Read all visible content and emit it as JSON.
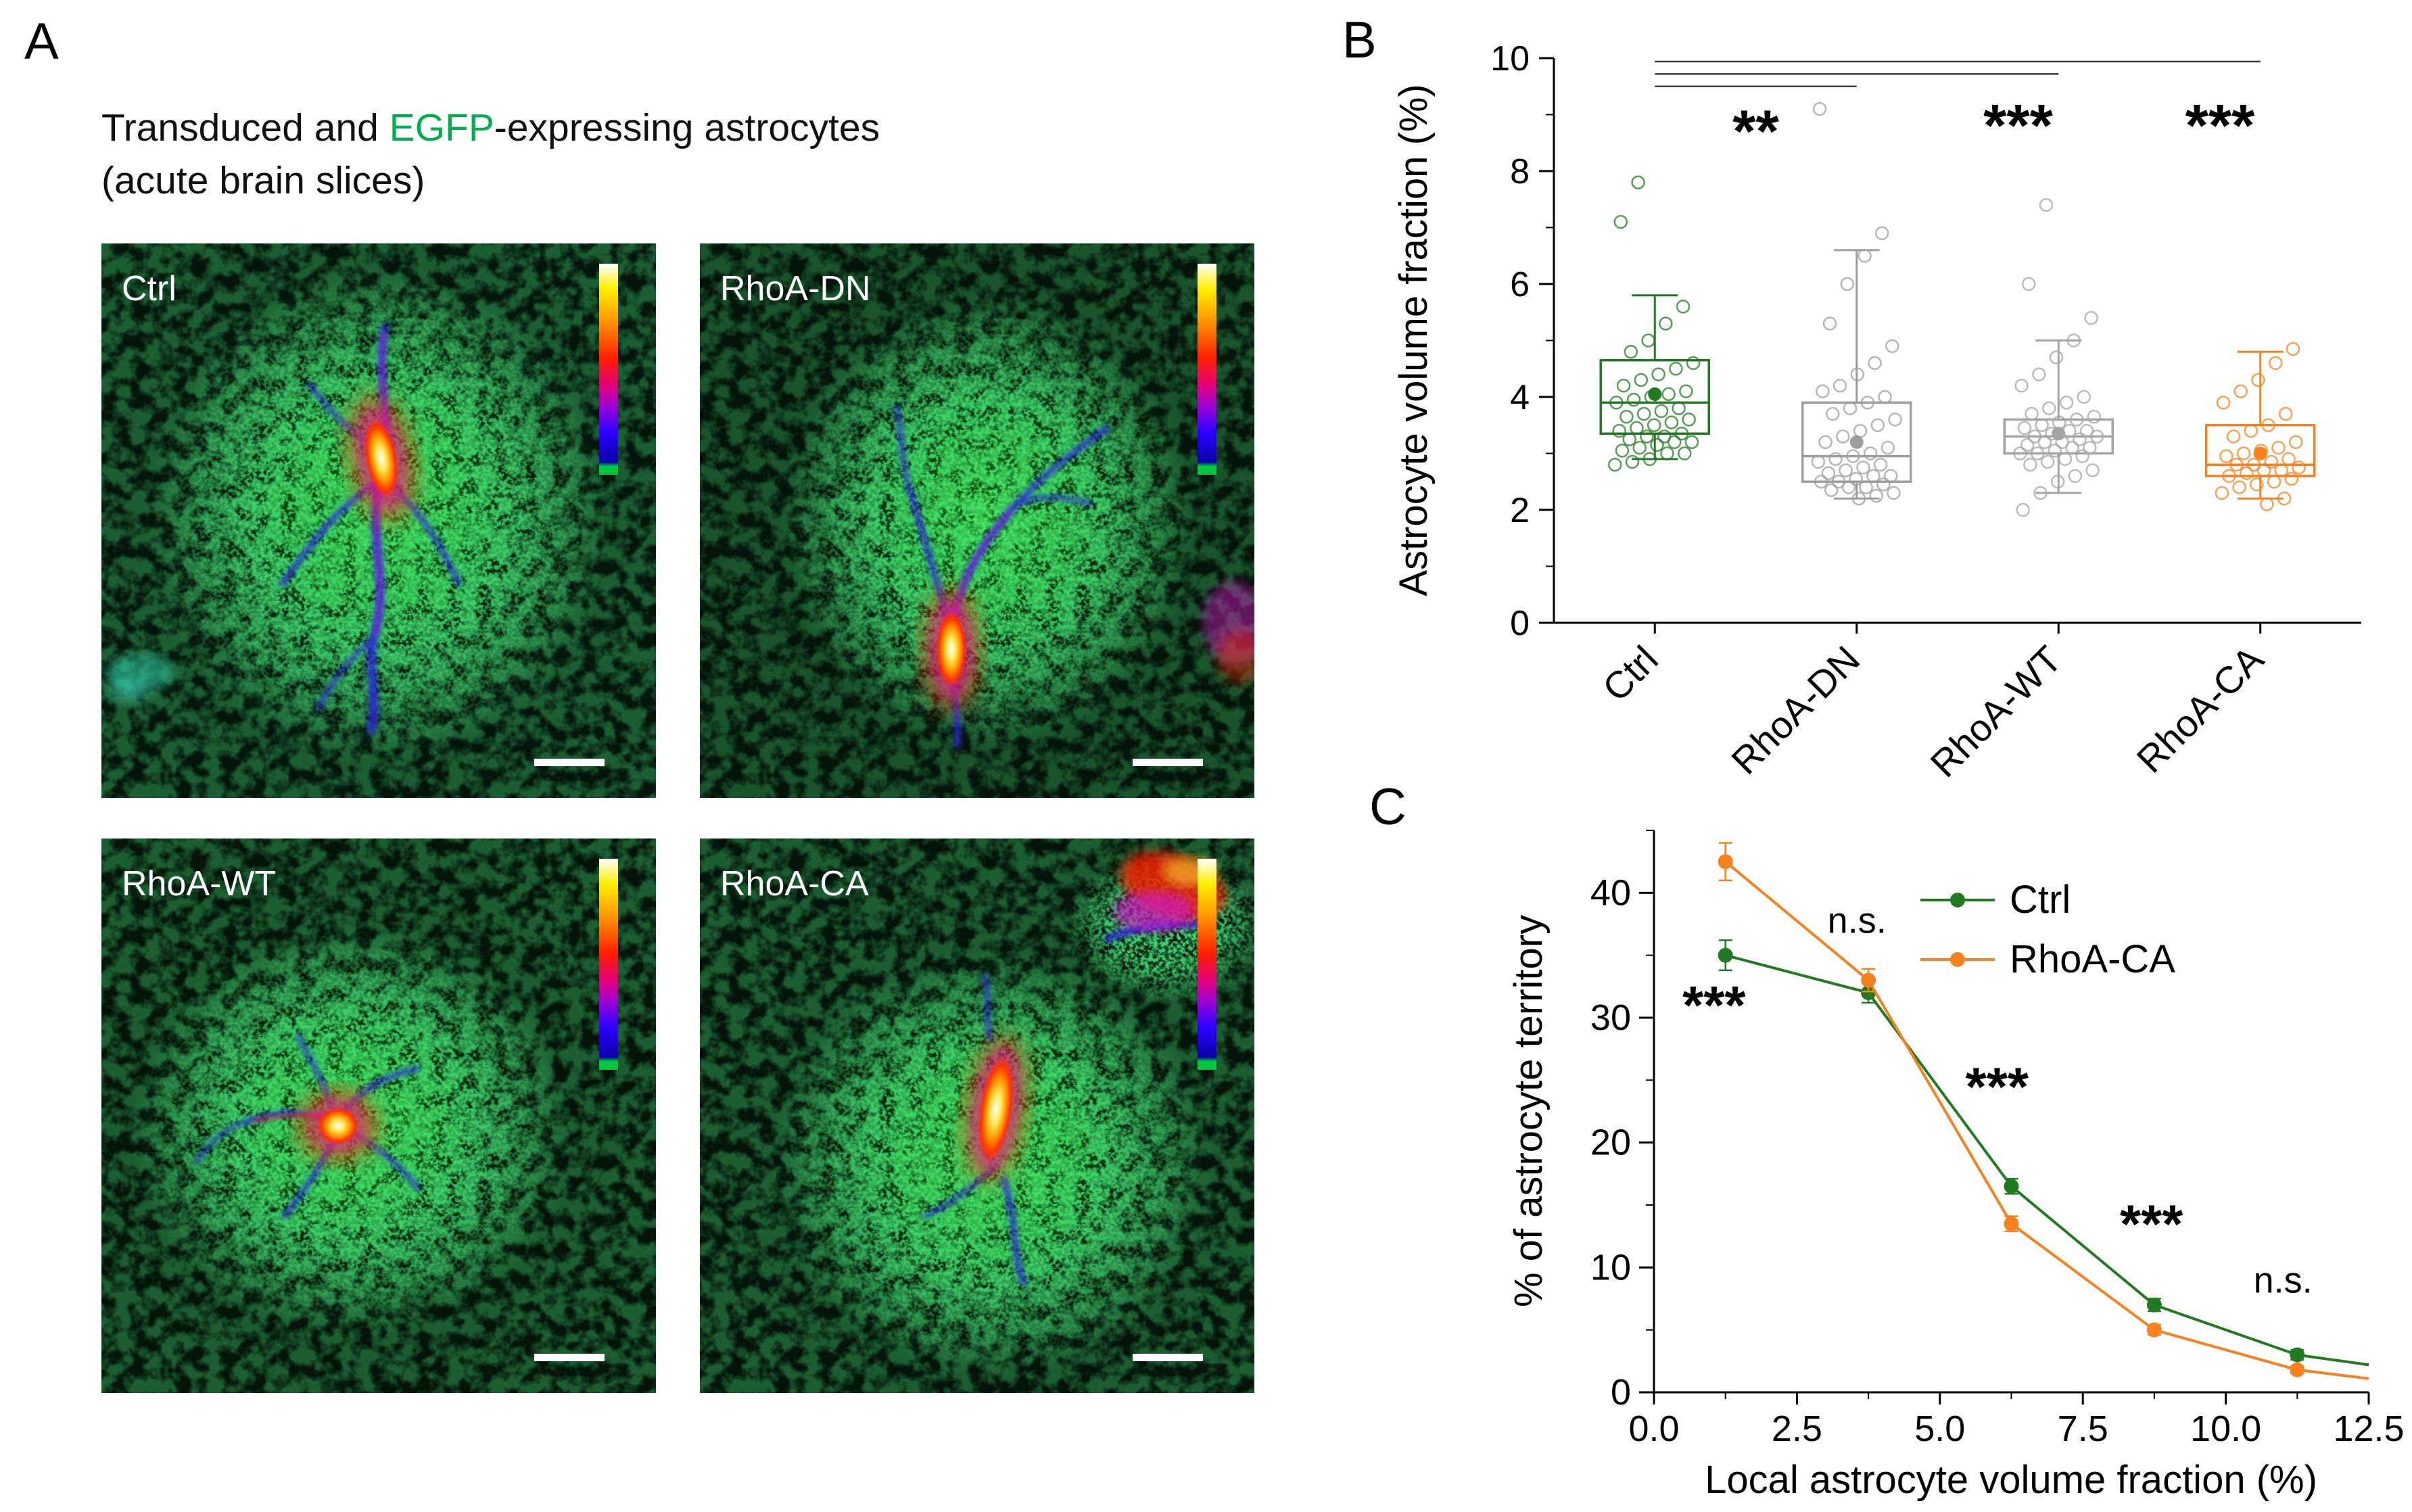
{
  "figure": {
    "panelA": {
      "label": "A",
      "title_pre": "Transduced and ",
      "title_egfp": "EGFP",
      "title_post": "-expressing astrocytes",
      "title_line2": "(acute brain slices)",
      "images": [
        {
          "label": "Ctrl"
        },
        {
          "label": "RhoA-DN"
        },
        {
          "label": "RhoA-WT"
        },
        {
          "label": "RhoA-CA"
        }
      ]
    },
    "panelB": {
      "label": "B"
    },
    "panelC": {
      "label": "C"
    }
  },
  "colors": {
    "ctrl_green": "#217a21",
    "gray": "#9e9e9e",
    "orange": "#f5821f",
    "egfp_green": "#00b050"
  },
  "chart_data": [
    {
      "type": "box",
      "ylabel": "Astrocyte volume fraction (%)",
      "ylim": [
        0,
        10
      ],
      "yticks": [
        0,
        2,
        4,
        6,
        8,
        10
      ],
      "categories": [
        "Ctrl",
        "RhoA-DN",
        "RhoA-WT",
        "RhoA-CA"
      ],
      "colors": [
        "#217a21",
        "#9e9e9e",
        "#a4a4a4",
        "#f5821f"
      ],
      "boxes": [
        {
          "q1": 3.35,
          "median": 3.9,
          "q3": 4.65,
          "whisker_low": 2.9,
          "whisker_high": 5.8,
          "mean": 4.05
        },
        {
          "q1": 2.5,
          "median": 2.95,
          "q3": 3.9,
          "whisker_low": 2.2,
          "whisker_high": 6.6,
          "mean": 3.2
        },
        {
          "q1": 3.0,
          "median": 3.3,
          "q3": 3.6,
          "whisker_low": 2.3,
          "whisker_high": 5.0,
          "mean": 3.35
        },
        {
          "q1": 2.6,
          "median": 2.8,
          "q3": 3.5,
          "whisker_low": 2.2,
          "whisker_high": 4.8,
          "mean": 3.0
        }
      ],
      "points": [
        [
          2.8,
          2.85,
          2.9,
          3.0,
          3.0,
          3.05,
          3.1,
          3.15,
          3.2,
          3.2,
          3.25,
          3.3,
          3.3,
          3.35,
          3.4,
          3.45,
          3.5,
          3.55,
          3.6,
          3.65,
          3.7,
          3.75,
          3.8,
          3.9,
          3.95,
          4.0,
          4.05,
          4.1,
          4.2,
          4.3,
          4.4,
          4.5,
          4.6,
          4.8,
          5.0,
          5.3,
          5.6,
          7.1,
          7.8
        ],
        [
          2.2,
          2.25,
          2.3,
          2.35,
          2.4,
          2.4,
          2.45,
          2.5,
          2.5,
          2.55,
          2.6,
          2.6,
          2.65,
          2.7,
          2.75,
          2.8,
          2.85,
          2.9,
          2.95,
          3.0,
          3.1,
          3.2,
          3.3,
          3.4,
          3.5,
          3.6,
          3.7,
          3.8,
          3.9,
          4.0,
          4.1,
          4.2,
          4.4,
          4.6,
          4.9,
          5.3,
          6.0,
          6.5,
          6.9,
          9.1
        ],
        [
          2.0,
          2.3,
          2.5,
          2.6,
          2.7,
          2.8,
          2.85,
          2.9,
          2.95,
          3.0,
          3.0,
          3.05,
          3.1,
          3.1,
          3.15,
          3.2,
          3.2,
          3.25,
          3.3,
          3.3,
          3.35,
          3.4,
          3.4,
          3.45,
          3.5,
          3.55,
          3.6,
          3.65,
          3.7,
          3.8,
          3.9,
          4.0,
          4.2,
          4.4,
          4.7,
          5.0,
          5.4,
          6.0,
          7.4
        ],
        [
          2.1,
          2.2,
          2.3,
          2.4,
          2.45,
          2.5,
          2.55,
          2.6,
          2.65,
          2.7,
          2.7,
          2.75,
          2.8,
          2.8,
          2.85,
          2.9,
          2.95,
          3.0,
          3.05,
          3.1,
          3.2,
          3.3,
          3.4,
          3.5,
          3.7,
          3.9,
          4.1,
          4.3,
          4.6,
          4.85
        ]
      ],
      "significance": [
        {
          "from": 0,
          "to": 1,
          "y": 9.5,
          "label": "**",
          "label_x": 0.5,
          "label_y": 8.35
        },
        {
          "from": 0,
          "to": 2,
          "y": 9.72,
          "label": "***",
          "label_x": 1.8,
          "label_y": 8.45
        },
        {
          "from": 0,
          "to": 3,
          "y": 9.94,
          "label": "***",
          "label_x": 2.8,
          "label_y": 8.45
        }
      ]
    },
    {
      "type": "line",
      "xlabel": "Local astrocyte volume fraction (%)",
      "ylabel": "% of astrocyte territory",
      "xlim": [
        0,
        12.5
      ],
      "ylim": [
        0,
        45
      ],
      "xticks": [
        0,
        2.5,
        5,
        7.5,
        10,
        12.5
      ],
      "xtick_labels": [
        "0.0",
        "2.5",
        "5.0",
        "7.5",
        "10.0",
        "12.5"
      ],
      "yticks": [
        0,
        10,
        20,
        30,
        40
      ],
      "x": [
        1.25,
        3.75,
        6.25,
        8.75,
        11.25
      ],
      "series": [
        {
          "name": "Ctrl",
          "color": "#217a21",
          "values": [
            35,
            32,
            16.5,
            7,
            3
          ],
          "errors": [
            1.2,
            0.8,
            0.6,
            0.5,
            0.4
          ],
          "tail_x": 12.5,
          "tail_y": 2.2
        },
        {
          "name": "RhoA-CA",
          "color": "#f5821f",
          "values": [
            42.5,
            33,
            13.5,
            5,
            1.8
          ],
          "errors": [
            1.5,
            0.9,
            0.6,
            0.4,
            0.3
          ],
          "tail_x": 12.5,
          "tail_y": 1.1
        }
      ],
      "annotations": [
        {
          "text": "***",
          "x": 1.05,
          "y": 29.5
        },
        {
          "text": "n.s.",
          "x": 3.55,
          "y": 36.8
        },
        {
          "text": "***",
          "x": 6.0,
          "y": 23
        },
        {
          "text": "***",
          "x": 8.7,
          "y": 12
        },
        {
          "text": "n.s.",
          "x": 11.0,
          "y": 8
        }
      ],
      "legend": {
        "items": [
          "Ctrl",
          "RhoA-CA"
        ],
        "position": "upper-right"
      }
    }
  ]
}
